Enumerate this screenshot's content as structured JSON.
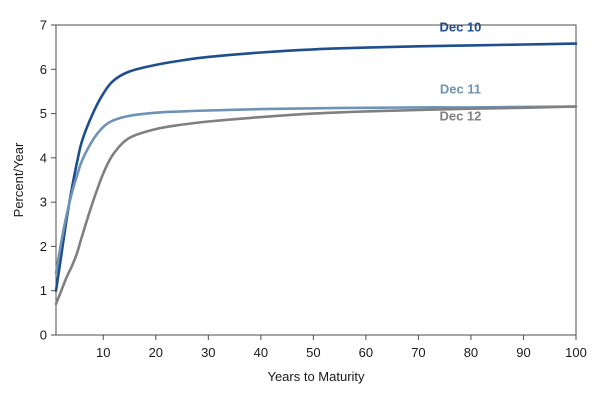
{
  "chart_data": {
    "type": "line",
    "title": "",
    "xlabel": "Years to Maturity",
    "ylabel": "Percent/Year",
    "xlim": [
      1,
      100
    ],
    "ylim": [
      0,
      7
    ],
    "x_ticks": [
      10,
      20,
      30,
      40,
      50,
      60,
      70,
      80,
      90,
      100
    ],
    "y_ticks": [
      0,
      1,
      2,
      3,
      4,
      5,
      6,
      7
    ],
    "grid": false,
    "legend": "inline labels near the right end of each curve",
    "series": [
      {
        "name": "Dec 10",
        "color": "#1f4e8c",
        "x": [
          1,
          2,
          3,
          4,
          5,
          6,
          8,
          10,
          12,
          15,
          20,
          25,
          30,
          40,
          50,
          60,
          70,
          80,
          90,
          100
        ],
        "y": [
          1.0,
          1.8,
          2.6,
          3.3,
          3.9,
          4.4,
          5.0,
          5.45,
          5.75,
          5.95,
          6.1,
          6.2,
          6.28,
          6.38,
          6.45,
          6.49,
          6.52,
          6.54,
          6.56,
          6.58
        ]
      },
      {
        "name": "Dec 11",
        "color": "#6f93b4",
        "x": [
          1,
          2,
          3,
          4,
          5,
          6,
          8,
          10,
          12,
          15,
          20,
          25,
          30,
          40,
          50,
          60,
          70,
          80,
          90,
          100
        ],
        "y": [
          1.4,
          2.1,
          2.7,
          3.2,
          3.6,
          3.95,
          4.4,
          4.7,
          4.85,
          4.95,
          5.02,
          5.05,
          5.07,
          5.1,
          5.12,
          5.13,
          5.14,
          5.14,
          5.15,
          5.16
        ]
      },
      {
        "name": "Dec 12",
        "color": "#808080",
        "x": [
          1,
          2,
          3,
          4,
          5,
          6,
          8,
          10,
          12,
          15,
          20,
          25,
          30,
          40,
          50,
          60,
          70,
          80,
          90,
          100
        ],
        "y": [
          0.7,
          1.0,
          1.3,
          1.55,
          1.85,
          2.25,
          3.0,
          3.65,
          4.1,
          4.45,
          4.65,
          4.75,
          4.82,
          4.92,
          5.0,
          5.05,
          5.08,
          5.11,
          5.13,
          5.16
        ]
      }
    ]
  }
}
